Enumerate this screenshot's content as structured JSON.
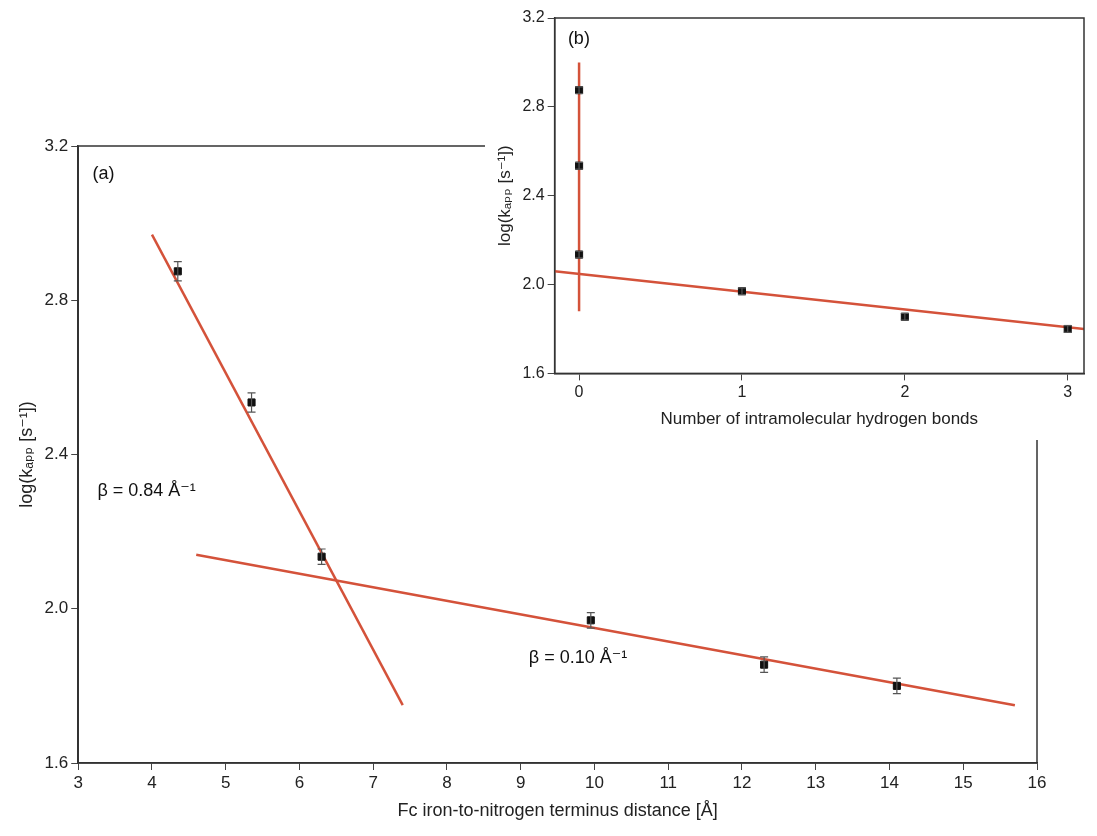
{
  "chart_data": [
    {
      "type": "scatter",
      "title": "(a)",
      "x_label": "Fc iron-to-nitrogen terminus distance [Å]",
      "y_label": "log(kₐₚₚ [s⁻¹])",
      "xlim": [
        3,
        16
      ],
      "xticks": [
        3,
        4,
        5,
        6,
        7,
        8,
        9,
        10,
        11,
        12,
        13,
        14,
        15,
        16
      ],
      "ylim": [
        1.6,
        3.2
      ],
      "yticks": [
        1.6,
        {
          "value": 2,
          "label": "2.0"
        },
        2.4,
        2.8,
        3.2
      ],
      "grid": false,
      "annotations": [
        "β = 0.84 Å⁻¹",
        "β = 0.10 Å⁻¹"
      ],
      "series": [
        {
          "type": "scatter",
          "color": "#111111",
          "marker": "square",
          "x": [
            4.35,
            5.35,
            6.3,
            9.95,
            12.3,
            14.1
          ],
          "values": [
            2.875,
            2.535,
            2.135,
            1.97,
            1.855,
            1.8
          ],
          "errors": [
            0.025,
            0.025,
            0.02,
            0.02,
            0.02,
            0.02
          ]
        },
        {
          "type": "line",
          "color": "#d4523a",
          "line_style": "solid",
          "x": [
            4.0,
            7.4
          ],
          "values": [
            2.97,
            1.75
          ]
        },
        {
          "type": "line",
          "color": "#d4523a",
          "line_style": "solid",
          "x": [
            4.6,
            15.7
          ],
          "values": [
            2.14,
            1.75
          ]
        }
      ]
    },
    {
      "type": "scatter",
      "title": "(b)",
      "x_label": "Number of intramolecular hydrogen bonds",
      "y_label": "log(kₐₚₚ [s⁻¹])",
      "xlim": [
        -0.15,
        3.1
      ],
      "xticks": [
        0,
        1,
        2,
        3
      ],
      "ylim": [
        1.6,
        3.2
      ],
      "yticks": [
        1.6,
        {
          "value": 2,
          "label": "2.0"
        },
        2.4,
        2.8,
        3.2
      ],
      "grid": false,
      "series": [
        {
          "type": "scatter",
          "color": "#111111",
          "marker": "square",
          "x": [
            0,
            0,
            0,
            1,
            2,
            3
          ],
          "values": [
            2.875,
            2.535,
            2.135,
            1.97,
            1.855,
            1.8
          ],
          "errors": [
            0.015,
            0.015,
            0.015,
            0.015,
            0.015,
            0.015
          ]
        },
        {
          "type": "line",
          "color": "#d4523a",
          "line_style": "solid",
          "x": [
            0,
            0
          ],
          "values": [
            1.88,
            3.0
          ]
        },
        {
          "type": "line",
          "color": "#d4523a",
          "line_style": "solid",
          "x": [
            -0.15,
            3.1
          ],
          "values": [
            2.06,
            1.8
          ]
        }
      ]
    }
  ]
}
